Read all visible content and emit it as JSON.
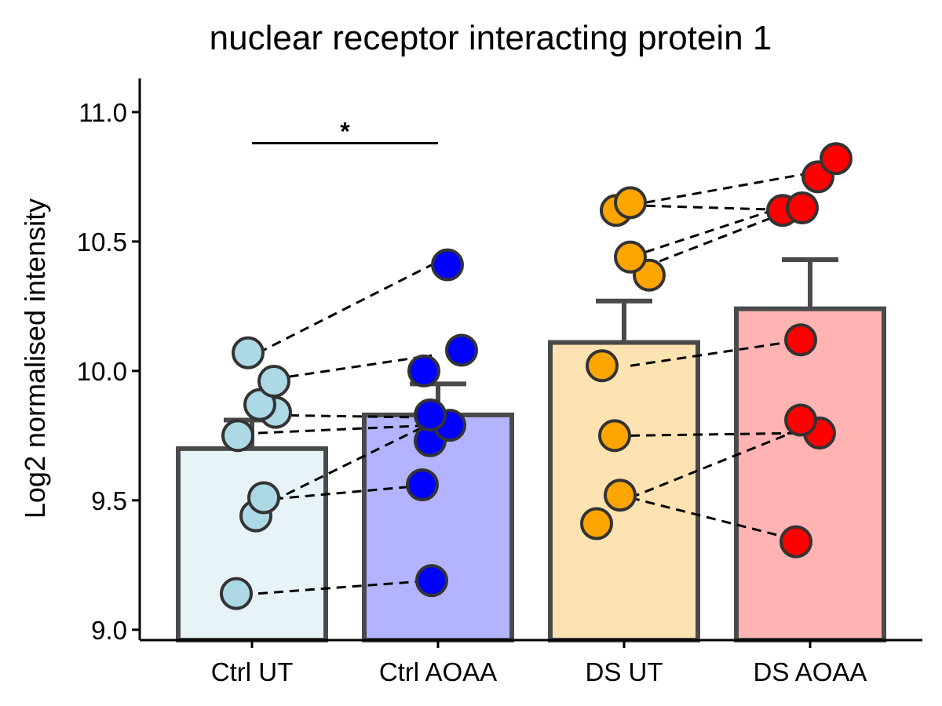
{
  "chart_data": {
    "type": "bar",
    "title": "nuclear receptor interacting protein 1",
    "xlabel": "",
    "ylabel": "Log2 normalised intensity",
    "ylim": [
      8.96,
      11.13
    ],
    "yticks": [
      9.0,
      9.5,
      10.0,
      10.5,
      11.0
    ],
    "ytick_labels": [
      "9.0",
      "9.5",
      "10.0",
      "10.5",
      "11.0"
    ],
    "categories": [
      "Ctrl UT",
      "Ctrl AOAA",
      "DS UT",
      "DS AOAA"
    ],
    "values": [
      9.7,
      9.83,
      10.11,
      10.24
    ],
    "error_upper": [
      9.81,
      9.95,
      10.27,
      10.43
    ],
    "colors": {
      "bar_fill": [
        "#e8f3f8",
        "#b3b3ff",
        "#fde3b2",
        "#ffb3b3"
      ],
      "point_fill": [
        "#add8e6",
        "#0000ff",
        "#ffa500",
        "#ff0000"
      ],
      "outline": "#4a4a4a"
    },
    "points": [
      [
        9.14,
        9.44,
        9.51,
        9.75,
        9.84,
        9.87,
        9.96,
        10.07
      ],
      [
        9.19,
        9.56,
        9.73,
        9.79,
        9.83,
        10.0,
        10.08,
        10.41
      ],
      [
        9.41,
        9.52,
        9.75,
        10.02,
        10.37,
        10.44,
        10.62,
        10.65
      ],
      [
        9.34,
        9.76,
        9.81,
        10.12,
        10.62,
        10.63,
        10.75,
        10.82
      ]
    ],
    "pairs": [
      {
        "from_group": 0,
        "from": 9.14,
        "to_group": 1,
        "to": 9.19
      },
      {
        "from_group": 0,
        "from": 9.5,
        "to_group": 1,
        "to": 9.56
      },
      {
        "from_group": 0,
        "from": 9.47,
        "to_group": 1,
        "to": 9.8
      },
      {
        "from_group": 0,
        "from": 9.76,
        "to_group": 1,
        "to": 9.79
      },
      {
        "from_group": 0,
        "from": 9.83,
        "to_group": 1,
        "to": 9.82
      },
      {
        "from_group": 0,
        "from": 9.96,
        "to_group": 1,
        "to": 10.06
      },
      {
        "from_group": 0,
        "from": 10.07,
        "to_group": 1,
        "to": 10.41
      },
      {
        "from_group": 2,
        "from": 9.51,
        "to_group": 3,
        "to": 9.34
      },
      {
        "from_group": 2,
        "from": 9.51,
        "to_group": 3,
        "to": 9.78
      },
      {
        "from_group": 2,
        "from": 9.75,
        "to_group": 3,
        "to": 9.76
      },
      {
        "from_group": 2,
        "from": 10.02,
        "to_group": 3,
        "to": 10.12
      },
      {
        "from_group": 2,
        "from": 10.44,
        "to_group": 3,
        "to": 10.66
      },
      {
        "from_group": 2,
        "from": 10.38,
        "to_group": 3,
        "to": 10.64
      },
      {
        "from_group": 2,
        "from": 10.64,
        "to_group": 3,
        "to": 10.62
      },
      {
        "from_group": 2,
        "from": 10.64,
        "to_group": 3,
        "to": 10.76
      }
    ],
    "significance": [
      {
        "from_group": 0,
        "to_group": 1,
        "y": 10.88,
        "label": "*"
      }
    ],
    "grid": false,
    "legend": "none"
  }
}
